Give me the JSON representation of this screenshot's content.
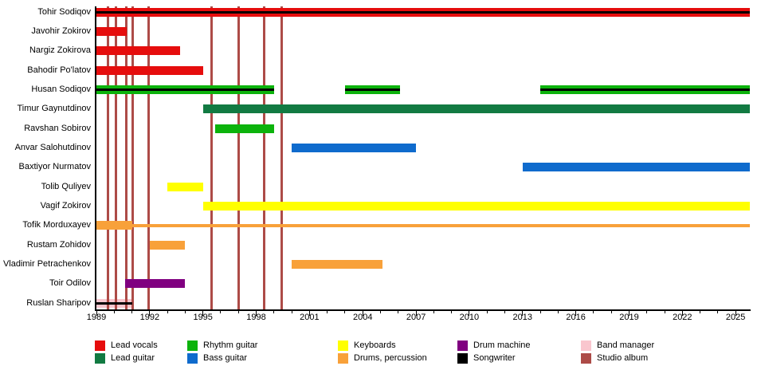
{
  "chart_data": {
    "type": "bar",
    "subtype": "band-member-timeline-gantt",
    "title": "",
    "x_axis": {
      "min": 1989,
      "max": 2025.8,
      "major_tick_years": [
        1989,
        1992,
        1995,
        1998,
        2001,
        2004,
        2007,
        2010,
        2013,
        2016,
        2019,
        2022,
        2025
      ],
      "minor_tick_step": 1,
      "grid": false
    },
    "roles": {
      "lead_vocals": {
        "label": "Lead vocals",
        "color": "#e60d0d"
      },
      "lead_guitar": {
        "label": "Lead guitar",
        "color": "#127a42"
      },
      "rhythm_guitar": {
        "label": "Rhythm guitar",
        "color": "#0cb30c"
      },
      "bass_guitar": {
        "label": "Bass guitar",
        "color": "#0f6bcd"
      },
      "keyboards": {
        "label": "Keyboards",
        "color": "#ffff00"
      },
      "drums": {
        "label": "Drums, percussion",
        "color": "#f8a13a"
      },
      "drum_machine": {
        "label": "Drum machine",
        "color": "#800080"
      },
      "songwriter": {
        "label": "Songwriter",
        "color": "#000000"
      },
      "band_manager": {
        "label": "Band manager",
        "color": "#f9c6ce"
      },
      "studio_album": {
        "label": "Studio album",
        "color": "#ad4b47"
      }
    },
    "members": [
      {
        "name": "Tohir Sodiqov",
        "segments": [
          {
            "role": "lead_vocals",
            "start": 1989,
            "end": 2025.8
          },
          {
            "role": "songwriter",
            "start": 1989,
            "end": 2025.8,
            "style": "stripe"
          }
        ]
      },
      {
        "name": "Javohir Zokirov",
        "segments": [
          {
            "role": "lead_vocals",
            "start": 1989,
            "end": 1990.7
          }
        ]
      },
      {
        "name": "Nargiz Zokirova",
        "segments": [
          {
            "role": "lead_vocals",
            "start": 1989,
            "end": 1993.7
          }
        ]
      },
      {
        "name": "Bahodir Po'latov",
        "segments": [
          {
            "role": "lead_vocals",
            "start": 1989,
            "end": 1995
          }
        ]
      },
      {
        "name": "Husan Sodiqov",
        "segments": [
          {
            "role": "rhythm_guitar",
            "start": 1989,
            "end": 1999
          },
          {
            "role": "songwriter",
            "start": 1989,
            "end": 1999,
            "style": "stripe"
          },
          {
            "role": "rhythm_guitar",
            "start": 2003,
            "end": 2006.1
          },
          {
            "role": "songwriter",
            "start": 2003,
            "end": 2006.1,
            "style": "stripe"
          },
          {
            "role": "rhythm_guitar",
            "start": 2014,
            "end": 2025.8
          },
          {
            "role": "songwriter",
            "start": 2014,
            "end": 2025.8,
            "style": "stripe"
          }
        ]
      },
      {
        "name": "Timur Gaynutdinov",
        "segments": [
          {
            "role": "lead_guitar",
            "start": 1995,
            "end": 2025.8
          }
        ]
      },
      {
        "name": "Ravshan Sobirov",
        "segments": [
          {
            "role": "rhythm_guitar",
            "start": 1995.7,
            "end": 1999
          }
        ]
      },
      {
        "name": "Anvar Salohutdinov",
        "segments": [
          {
            "role": "bass_guitar",
            "start": 2000,
            "end": 2007
          }
        ]
      },
      {
        "name": "Baxtiyor Nurmatov",
        "segments": [
          {
            "role": "bass_guitar",
            "start": 2013,
            "end": 2025.8
          }
        ]
      },
      {
        "name": "Tolib Quliyev",
        "segments": [
          {
            "role": "keyboards",
            "start": 1993,
            "end": 1995
          }
        ]
      },
      {
        "name": "Vagif Zokirov",
        "segments": [
          {
            "role": "keyboards",
            "start": 1995,
            "end": 2025.8
          }
        ]
      },
      {
        "name": "Tofik Morduxayev",
        "segments": [
          {
            "role": "drums",
            "start": 1989,
            "end": 1991
          },
          {
            "role": "drums",
            "start": 1991,
            "end": 2025.8,
            "style": "thin"
          }
        ]
      },
      {
        "name": "Rustam Zohidov",
        "segments": [
          {
            "role": "drums",
            "start": 1992,
            "end": 1994
          }
        ]
      },
      {
        "name": "Vladimir Petrachenkov",
        "segments": [
          {
            "role": "drums",
            "start": 2000,
            "end": 2005.1
          }
        ]
      },
      {
        "name": "Toir Odilov",
        "segments": [
          {
            "role": "drum_machine",
            "start": 1990.6,
            "end": 1994
          }
        ]
      },
      {
        "name": "Ruslan Sharipov",
        "segments": [
          {
            "role": "band_manager",
            "start": 1989,
            "end": 1991
          },
          {
            "role": "songwriter",
            "start": 1989,
            "end": 1991,
            "style": "stripe"
          }
        ]
      }
    ],
    "studio_album_years": [
      1989.65,
      1990.1,
      1990.7,
      1991.05,
      1991.95,
      1995.5,
      1997.0,
      1998.45,
      1999.45
    ],
    "legend_columns": [
      [
        "lead_vocals",
        "lead_guitar"
      ],
      [
        "rhythm_guitar",
        "bass_guitar"
      ],
      [
        "keyboards",
        "drums"
      ],
      [
        "drum_machine",
        "songwriter"
      ],
      [
        "band_manager",
        "studio_album"
      ]
    ],
    "legend_position": "bottom"
  }
}
